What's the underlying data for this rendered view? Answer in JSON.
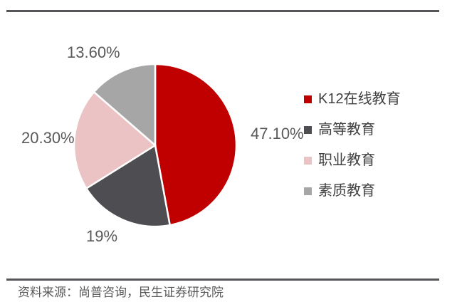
{
  "chart_data": {
    "type": "pie",
    "title": "",
    "slices": [
      {
        "name": "K12在线教育",
        "value": 47.1,
        "label": "47.10%",
        "color": "#C00000"
      },
      {
        "name": "高等教育",
        "value": 19,
        "label": "19%",
        "color": "#4D4D52"
      },
      {
        "name": "职业教育",
        "value": 20.3,
        "label": "20.30%",
        "color": "#EBC3C5"
      },
      {
        "name": "素质教育",
        "value": 13.6,
        "label": "13.60%",
        "color": "#A6A6A6"
      }
    ],
    "start_angle_deg": 0,
    "direction": "clockwise",
    "legend_position": "right",
    "slice_border_color": "#FFFFFF",
    "data_label_color": "#595959",
    "legend_text_color": "#404042"
  },
  "divider_color": "#55565A",
  "source_note": "资料来源：尚普咨询，民生证券研究院"
}
